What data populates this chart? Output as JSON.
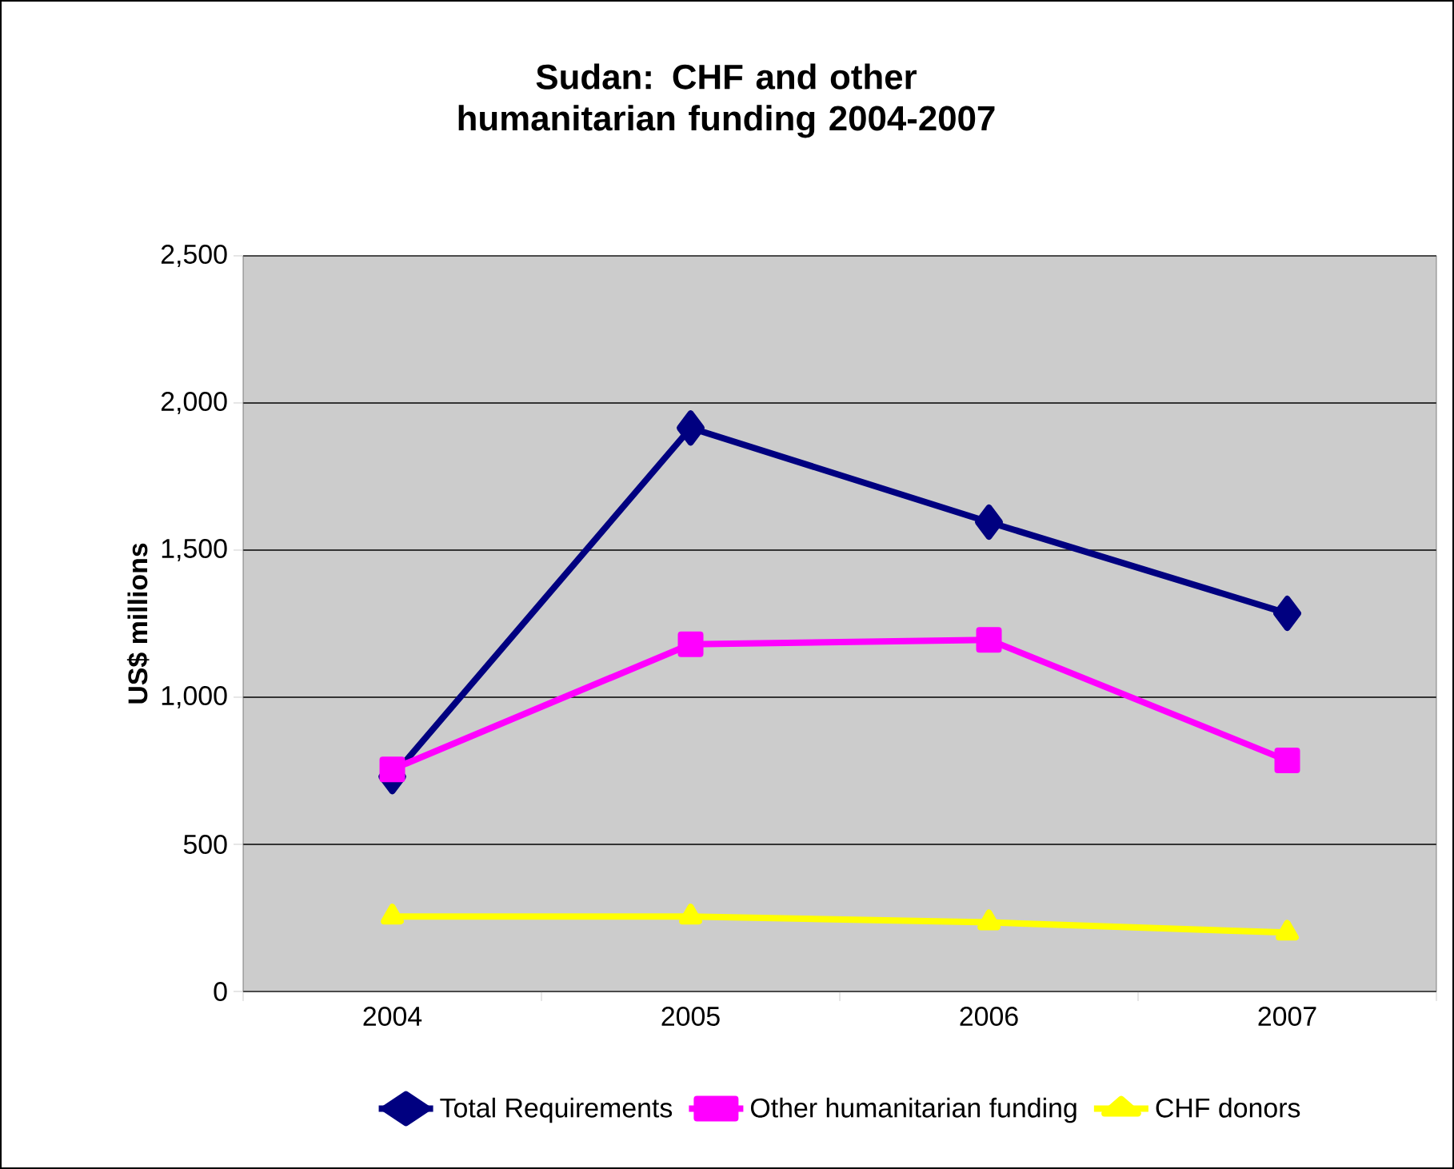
{
  "chart_data": {
    "type": "line",
    "title": "Sudan: CHF and other humanitarian funding 2004-2007",
    "ylabel": "US$ millions",
    "categories": [
      "2004",
      "2005",
      "2006",
      "2007"
    ],
    "series": [
      {
        "name": "Total Requirements",
        "color": "#000080",
        "marker": "diamond",
        "values": [
          730,
          1915,
          1595,
          1285
        ]
      },
      {
        "name": "Other humanitarian funding",
        "color": "#ff00ff",
        "marker": "square",
        "values": [
          755,
          1180,
          1195,
          785
        ]
      },
      {
        "name": "CHF donors",
        "color": "#ffff00",
        "marker": "triangle",
        "values": [
          255,
          255,
          235,
          200
        ]
      }
    ],
    "ylim": [
      0,
      2500
    ],
    "yticks": [
      0,
      500,
      {
        "value": 1000,
        "label": "1,000"
      },
      {
        "value": 1500,
        "label": "1,500"
      },
      {
        "value": 2000,
        "label": "2,000"
      },
      {
        "value": 2500,
        "label": "2,500"
      }
    ],
    "grid": "y",
    "legend": "bottom",
    "line_style": "solid"
  }
}
